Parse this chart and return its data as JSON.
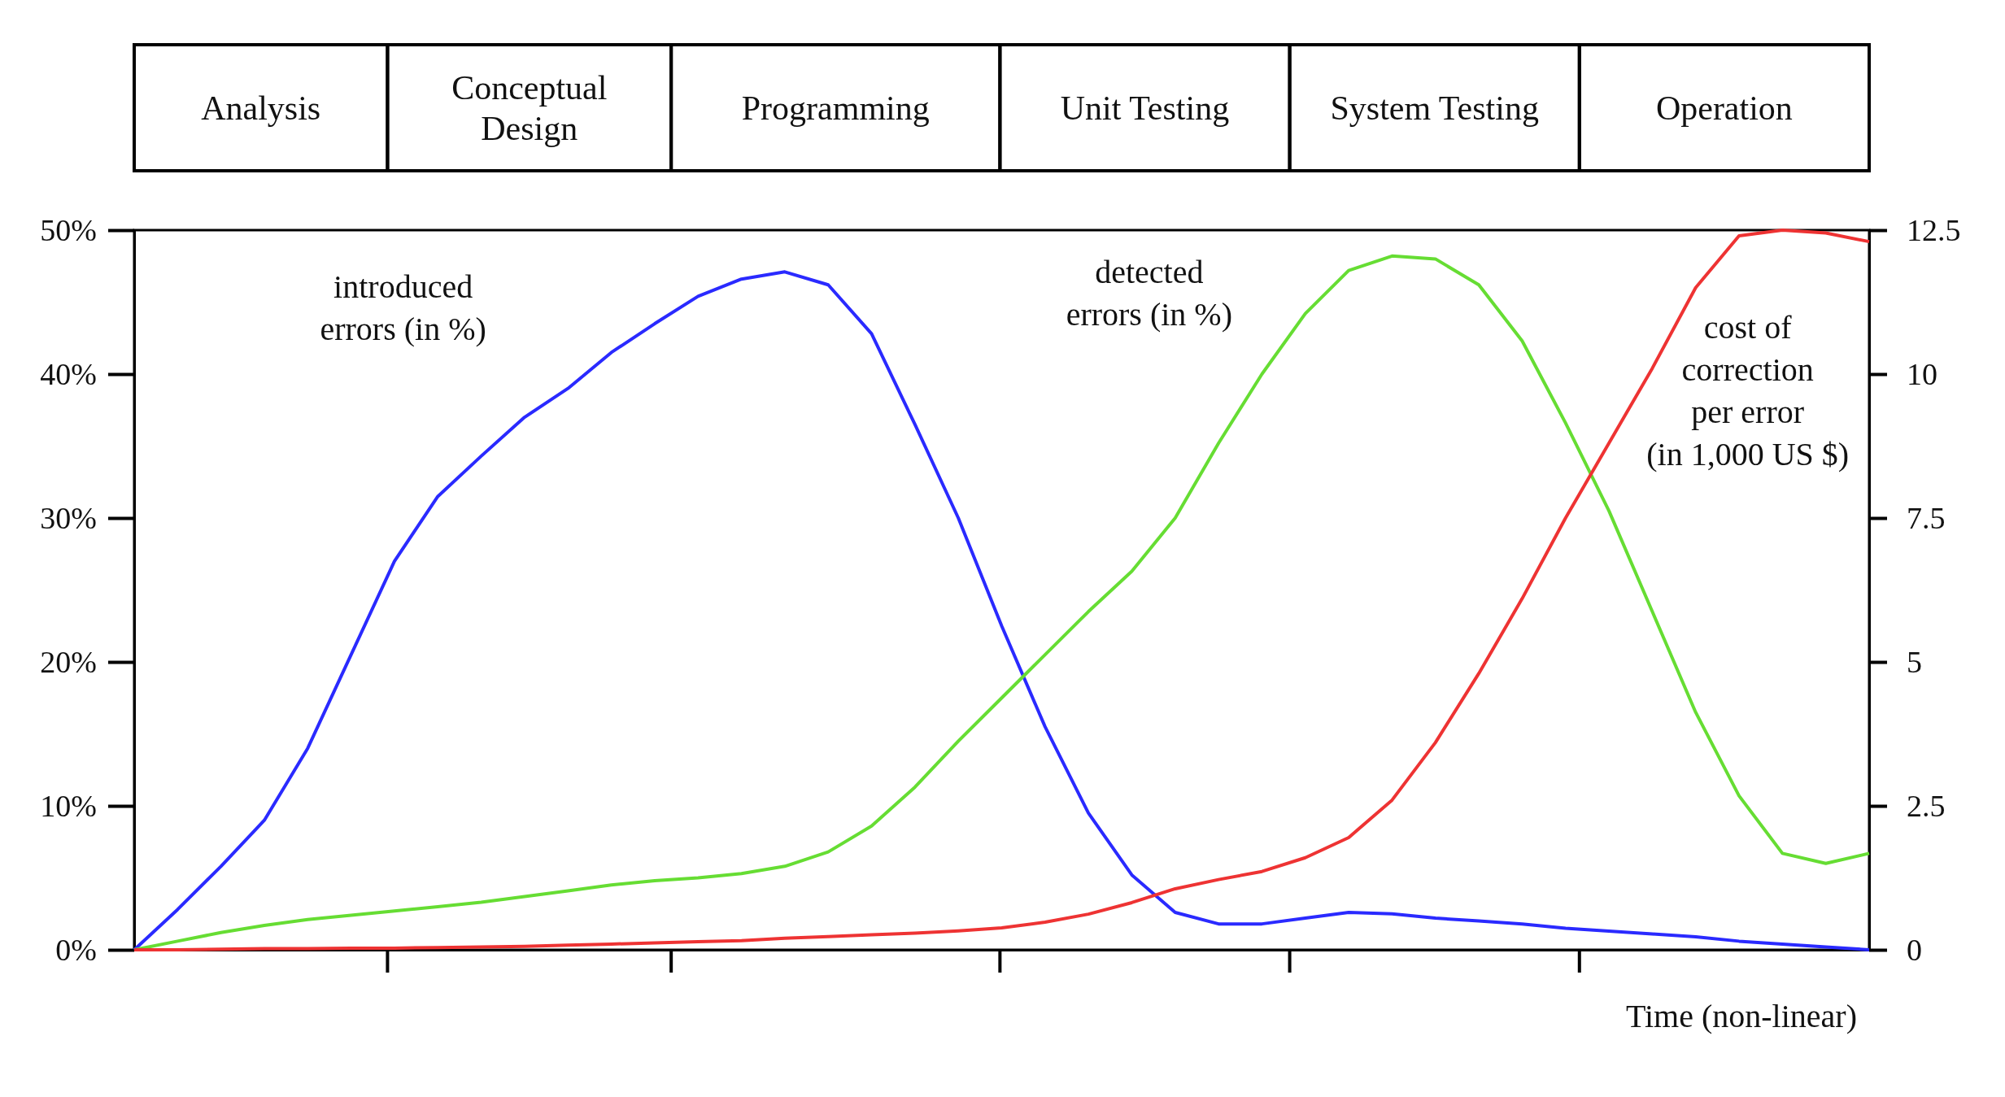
{
  "chart_data": {
    "type": "line",
    "xlabel": "Time (non-linear)",
    "categories": [
      null,
      null,
      null,
      null,
      null,
      null,
      null,
      null,
      null,
      null,
      null,
      null,
      null,
      null,
      null,
      null,
      null,
      null,
      null,
      null,
      null,
      null,
      null,
      null,
      null,
      null,
      null,
      null,
      null,
      null,
      null,
      null,
      null,
      null,
      null,
      null,
      null,
      null,
      null,
      null,
      null
    ],
    "ylim": [
      0,
      50
    ],
    "yticks": [
      {
        "value": 0,
        "label": "0%"
      },
      {
        "value": 10,
        "label": "10%"
      },
      {
        "value": 20,
        "label": "20%"
      },
      {
        "value": 30,
        "label": "30%"
      },
      {
        "value": 40,
        "label": "40%"
      },
      {
        "value": 50,
        "label": "50%"
      }
    ],
    "y2lim": [
      0,
      12.5
    ],
    "y2ticks": [
      0,
      2.5,
      5,
      7.5,
      10,
      12.5
    ],
    "annotations": [
      "Analysis",
      "Conceptual Design",
      "Programming",
      "Unit Testing",
      "System Testing",
      "Operation"
    ],
    "series": [
      {
        "name": "introduced errors (in %)",
        "color": "#2a2aff",
        "values": [
          0,
          2.8,
          5.8,
          9.0,
          14.0,
          20.5,
          27,
          31.5,
          34.3,
          37,
          39,
          41.5,
          43.5,
          45.4,
          46.6,
          47.1,
          46.2,
          42.8,
          36.5,
          30,
          22.5,
          15.5,
          9.5,
          5.2,
          2.6,
          1.8,
          1.8,
          2.2,
          2.6,
          2.5,
          2.2,
          2.0,
          1.8,
          1.5,
          1.3,
          1.1,
          0.9,
          0.6,
          0.4,
          0.2,
          0
        ]
      },
      {
        "name": "detected errors (in %)",
        "color": "#66dd33",
        "values": [
          0,
          0.6,
          1.2,
          1.7,
          2.1,
          2.4,
          2.7,
          3.0,
          3.3,
          3.7,
          4.1,
          4.5,
          4.8,
          5.0,
          5.3,
          5.8,
          6.8,
          8.6,
          11.3,
          14.5,
          17.5,
          20.5,
          23.5,
          26.3,
          30,
          35.2,
          40,
          44.2,
          47.2,
          48.2,
          48,
          46.2,
          42.3,
          36.6,
          30.5,
          23.5,
          16.5,
          10.7,
          6.7,
          6.0,
          6.7
        ]
      },
      {
        "name": "cost of correction per error (in 1,000 US $)",
        "color": "#ee3333",
        "axis": "y2",
        "values": [
          0,
          0,
          0.01,
          0.02,
          0.02,
          0.03,
          0.03,
          0.04,
          0.05,
          0.06,
          0.08,
          0.1,
          0.12,
          0.14,
          0.16,
          0.2,
          0.23,
          0.26,
          0.29,
          0.33,
          0.38,
          0.48,
          0.62,
          0.82,
          1.06,
          1.22,
          1.36,
          1.6,
          1.95,
          2.6,
          3.6,
          4.8,
          6.1,
          7.5,
          8.8,
          10.1,
          11.5,
          12.4,
          12.5,
          12.45,
          12.3
        ]
      }
    ]
  }
}
